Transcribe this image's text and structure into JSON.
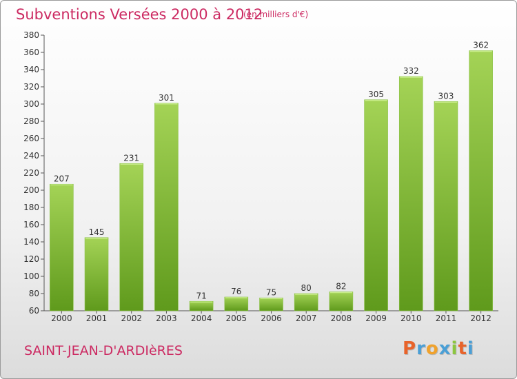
{
  "title": "Subventions Versées 2000 à 2012",
  "subtitle": "(en milliers d'€)",
  "commune": "SAINT-JEAN-D'ARDIèRES",
  "brand": {
    "letters": [
      "P",
      "r",
      "o",
      "x",
      "i",
      "t",
      "i"
    ],
    "colors": [
      "#e8632a",
      "#4a9fd6",
      "#f0a22c",
      "#4a9fd6",
      "#8cc63f",
      "#e8632a",
      "#4a9fd6"
    ]
  },
  "colors": {
    "bar_top": "#a4d356",
    "bar_bottom": "#5f9a1c",
    "accent": "#cc2a62"
  },
  "chart_data": {
    "type": "bar",
    "title": "Subventions Versées 2000 à 2012",
    "subtitle": "(en milliers d'€)",
    "xlabel": "",
    "ylabel": "",
    "categories": [
      "2000",
      "2001",
      "2002",
      "2003",
      "2004",
      "2005",
      "2006",
      "2007",
      "2008",
      "2009",
      "2010",
      "2011",
      "2012"
    ],
    "values": [
      207,
      145,
      231,
      301,
      71,
      76,
      75,
      80,
      82,
      305,
      332,
      303,
      362
    ],
    "ylim": [
      60,
      380
    ],
    "yticks": [
      60,
      80,
      100,
      120,
      140,
      160,
      180,
      200,
      220,
      240,
      260,
      280,
      300,
      320,
      340,
      360,
      380
    ],
    "grid": false,
    "legend": "none"
  }
}
